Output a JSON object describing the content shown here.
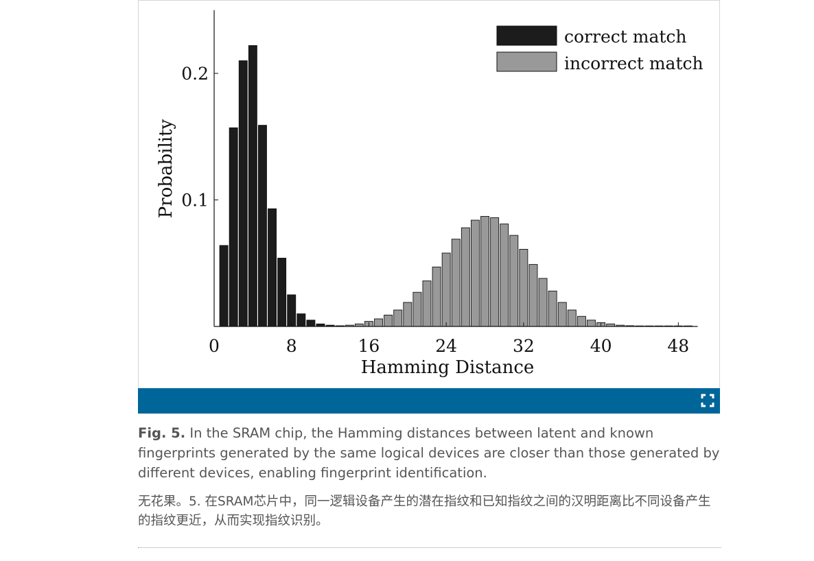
{
  "chart_data": {
    "type": "bar",
    "xlabel": "Hamming Distance",
    "ylabel": "Probability",
    "xlim": [
      0,
      50
    ],
    "ylim": [
      0,
      0.25
    ],
    "xticks": [
      0,
      8,
      16,
      24,
      32,
      40,
      48
    ],
    "yticks": [
      0.1,
      0.2
    ],
    "xtick_labels": [
      "0",
      "8",
      "16",
      "24",
      "32",
      "40",
      "48"
    ],
    "ytick_labels": [
      "0.1",
      "0.2"
    ],
    "grid": false,
    "legend": "top-right",
    "series": [
      {
        "name": "correct match",
        "color": "#1c1c1c",
        "x": [
          1,
          2,
          3,
          4,
          5,
          6,
          7,
          8,
          9,
          10,
          11,
          12,
          13,
          14
        ],
        "values": [
          0.064,
          0.157,
          0.21,
          0.222,
          0.159,
          0.093,
          0.054,
          0.025,
          0.01,
          0.005,
          0.002,
          0.001,
          0.0005,
          0.0002
        ]
      },
      {
        "name": "incorrect match",
        "color": "#999999",
        "x": [
          13,
          14,
          15,
          16,
          17,
          18,
          19,
          20,
          21,
          22,
          23,
          24,
          25,
          26,
          27,
          28,
          29,
          30,
          31,
          32,
          33,
          34,
          35,
          36,
          37,
          38,
          39,
          40,
          41,
          42,
          43,
          44,
          45,
          46,
          47,
          48,
          49
        ],
        "values": [
          0.0005,
          0.001,
          0.002,
          0.004,
          0.006,
          0.009,
          0.013,
          0.019,
          0.027,
          0.036,
          0.047,
          0.058,
          0.069,
          0.078,
          0.084,
          0.087,
          0.086,
          0.081,
          0.072,
          0.061,
          0.049,
          0.038,
          0.028,
          0.019,
          0.013,
          0.008,
          0.005,
          0.003,
          0.002,
          0.001,
          0.0006,
          0.0004,
          0.0002,
          0.0001,
          0.0001,
          0.0001,
          0.0001
        ]
      }
    ]
  },
  "caption": {
    "label": "Fig. 5.",
    "text": "In the SRAM chip, the Hamming distances between latent and known fingerprints generated by the same logical devices are closer than those generated by different devices, enabling fingerprint identification."
  },
  "caption_zh": "无花果。5. 在SRAM芯片中，同一逻辑设备产生的潜在指纹和已知指纹之间的汉明距离比不同设备产生的指纹更近，从而实现指纹识别。",
  "figure_bar": {
    "color": "#006699",
    "expand_icon": "expand-icon"
  }
}
